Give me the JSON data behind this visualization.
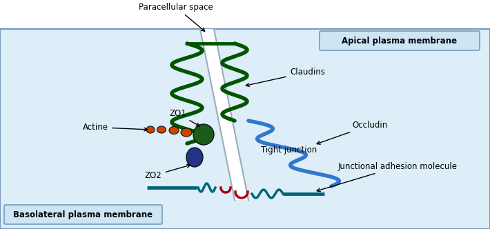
{
  "bg_color": "#ddeef8",
  "white_area_color": "#ffffff",
  "border_color": "#7799bb",
  "apical_label": "Apical plasma membrane",
  "basolateral_label": "Basolateral plasma membrane",
  "paracellular_label": "Paracellular space",
  "claudins_label": "Claudins",
  "occludin_label": "Occludin",
  "zo1_label": "ZO1",
  "zo2_label": "ZO2",
  "actine_label": "Actine",
  "tight_junction_label": "Tight junction",
  "jam_label": "Junctional adhesion molecule",
  "green_color": "#005500",
  "blue_color": "#3377cc",
  "teal_color": "#006677",
  "red_color": "#aa0011",
  "orange_color": "#cc4400",
  "zo1_green": "#1a5c1a",
  "zo2_blue": "#223388",
  "membrane_line_color": "#99aabb",
  "membrane_fill": "#ffffff"
}
